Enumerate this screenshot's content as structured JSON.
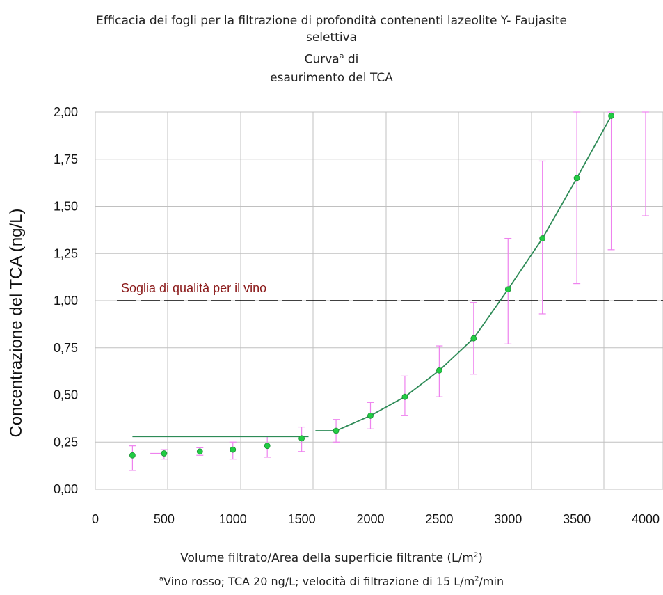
{
  "chart_data": {
    "type": "scatter",
    "title": {
      "line1": "Efficacia dei fogli per la filtrazione di profondità contenenti lazeolite Y- Faujasite",
      "line2": "selettiva",
      "line3_pre": "Curva",
      "line3_sup": "a",
      "line3_post": " di",
      "line4": "esaurimento del TCA"
    },
    "ylabel": "Concentrazione del TCA (ng/L)",
    "xlabel": {
      "text": "Volume filtrato/Area della superficie filtrante (L/m",
      "sup": "2",
      "close": ")"
    },
    "footnote": {
      "sup_a": "a",
      "text1": "Vino rosso; TCA 20 ng/L; velocità di filtrazione di 15 L/m",
      "sup2": "2",
      "text2": "/min"
    },
    "x_ticks": [
      {
        "value": 0,
        "label": "0"
      },
      {
        "value": 500,
        "label": "500"
      },
      {
        "value": 1000,
        "label": "1000"
      },
      {
        "value": 1500,
        "label": "1500"
      },
      {
        "value": 2000,
        "label": "2000"
      },
      {
        "value": 2500,
        "label": "2500"
      },
      {
        "value": 3000,
        "label": "3000"
      },
      {
        "value": 3500,
        "label": "3500"
      },
      {
        "value": 4000,
        "label": "4000"
      }
    ],
    "y_ticks": [
      {
        "value": 0,
        "label": "0,00"
      },
      {
        "value": 0.25,
        "label": "0,25"
      },
      {
        "value": 0.5,
        "label": "0,50"
      },
      {
        "value": 0.75,
        "label": "0,75"
      },
      {
        "value": 1.0,
        "label": "1,00"
      },
      {
        "value": 1.25,
        "label": "1,25"
      },
      {
        "value": 1.5,
        "label": "1,50"
      },
      {
        "value": 1.75,
        "label": "1,75"
      },
      {
        "value": 2.0,
        "label": "2,00"
      }
    ],
    "xlim": [
      0,
      4000
    ],
    "ylim": [
      0,
      2.0
    ],
    "grid": true,
    "threshold": {
      "value": 1.0,
      "label": "Soglia di qualità per il vino",
      "label_color": "#8b1a1a"
    },
    "points": [
      {
        "x": 270,
        "y": 0.18,
        "err_low": 0.1,
        "err_high": 0.23
      },
      {
        "x": 500,
        "y": 0.19,
        "err_low": 0.16,
        "err_high": 0.21
      },
      {
        "x": 760,
        "y": 0.2,
        "err_low": 0.18,
        "err_high": 0.22
      },
      {
        "x": 1000,
        "y": 0.21,
        "err_low": 0.16,
        "err_high": 0.25
      },
      {
        "x": 1250,
        "y": 0.23,
        "err_low": 0.17,
        "err_high": 0.28
      },
      {
        "x": 1500,
        "y": 0.27,
        "err_low": 0.2,
        "err_high": 0.33
      },
      {
        "x": 1750,
        "y": 0.31,
        "err_low": 0.25,
        "err_high": 0.37
      },
      {
        "x": 2000,
        "y": 0.39,
        "err_low": 0.32,
        "err_high": 0.46
      },
      {
        "x": 2250,
        "y": 0.49,
        "err_low": 0.39,
        "err_high": 0.6
      },
      {
        "x": 2500,
        "y": 0.63,
        "err_low": 0.49,
        "err_high": 0.76
      },
      {
        "x": 2750,
        "y": 0.8,
        "err_low": 0.61,
        "err_high": 0.99
      },
      {
        "x": 3000,
        "y": 1.06,
        "err_low": 0.77,
        "err_high": 1.33
      },
      {
        "x": 3250,
        "y": 1.33,
        "err_low": 0.93,
        "err_high": 1.74
      },
      {
        "x": 3500,
        "y": 1.65,
        "err_low": 1.09,
        "err_high": 2.0
      },
      {
        "x": 3750,
        "y": 1.98,
        "err_low": 1.27,
        "err_high": 2.0
      }
    ],
    "extra_errorbar": {
      "x": 4000,
      "err_low": 1.45,
      "err_high": 2.0
    },
    "flat_line": {
      "x_start": 270,
      "x_end": 1550,
      "y": 0.28
    },
    "curve": [
      {
        "x": 1600,
        "y": 0.31
      },
      {
        "x": 1750,
        "y": 0.31
      },
      {
        "x": 2000,
        "y": 0.39
      },
      {
        "x": 2250,
        "y": 0.49
      },
      {
        "x": 2500,
        "y": 0.63
      },
      {
        "x": 2750,
        "y": 0.8
      },
      {
        "x": 3000,
        "y": 1.06
      },
      {
        "x": 3250,
        "y": 1.33
      },
      {
        "x": 3500,
        "y": 1.65
      },
      {
        "x": 3750,
        "y": 1.98
      }
    ],
    "colors": {
      "point": "#22cc44",
      "fit_line": "#2e8b57",
      "error_bar": "#ee82ee",
      "grid": "#c0c0c0",
      "threshold": "#000000"
    }
  }
}
